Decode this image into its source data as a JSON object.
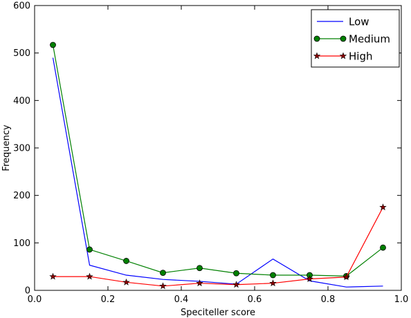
{
  "chart_data": {
    "type": "line",
    "title": "",
    "xlabel": "Speciteller score",
    "ylabel": "Frequency",
    "xlim": [
      0.0,
      1.0
    ],
    "ylim": [
      0,
      600
    ],
    "xticks": [
      0.0,
      0.2,
      0.4,
      0.6,
      0.8,
      1.0
    ],
    "xtick_labels": [
      "0.0",
      "0.2",
      "0.4",
      "0.6",
      "0.8",
      "1.0"
    ],
    "yticks": [
      0,
      100,
      200,
      300,
      400,
      500,
      600
    ],
    "ytick_labels": [
      "0",
      "100",
      "200",
      "300",
      "400",
      "500",
      "600"
    ],
    "grid": false,
    "legend_position": "top-right",
    "x": [
      0.05,
      0.15,
      0.25,
      0.35,
      0.45,
      0.55,
      0.65,
      0.75,
      0.85,
      0.95
    ],
    "series": [
      {
        "name": "Low",
        "color": "#0000ff",
        "marker": "none",
        "values": [
          490,
          53,
          32,
          23,
          19,
          13,
          66,
          20,
          7,
          9
        ]
      },
      {
        "name": "Medium",
        "color": "#008000",
        "marker": "circle",
        "values": [
          517,
          86,
          62,
          37,
          47,
          36,
          32,
          32,
          30,
          90
        ]
      },
      {
        "name": "High",
        "color": "#ff0000",
        "marker": "star",
        "marker_fill": "#8b0000",
        "values": [
          29,
          29,
          17,
          9,
          15,
          12,
          15,
          24,
          28,
          175
        ]
      }
    ]
  }
}
